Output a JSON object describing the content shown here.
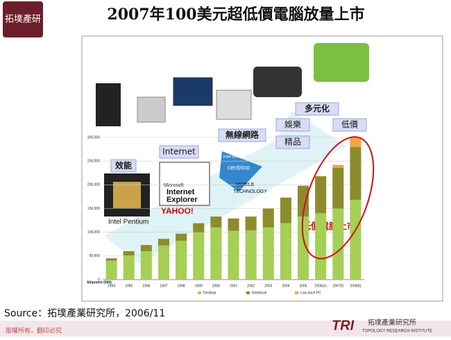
{
  "slide": {
    "title": "2007年100美元超低價電腦放量上市",
    "logo": "拓墣產研",
    "source": "Source：拓墣產業研究所，2006/11",
    "footer": "版權所有，翻印必究",
    "brand": "TRI",
    "brand_name": "拓墣產業研究所",
    "brand_sub": "TOPOLOGY RESEARCH INSTITUTE"
  },
  "chart_data": {
    "type": "stacked-bar",
    "y_label": "Shipment (000)",
    "categories": [
      "1994",
      "1995",
      "1996",
      "1997",
      "1998",
      "1999",
      "2000",
      "2001",
      "2002",
      "2003",
      "2004",
      "2005",
      "2006(e)",
      "2007(f)",
      "2008(f)"
    ],
    "series": [
      {
        "name": "Desktop",
        "color": "#a6cf55",
        "values": [
          40,
          51,
          60,
          72,
          82,
          100,
          110,
          103,
          104,
          110,
          119,
          133,
          140,
          150,
          168
        ]
      },
      {
        "name": "Notebook",
        "color": "#8c8c2c",
        "values": [
          5,
          9,
          13,
          14,
          15,
          19,
          23,
          26,
          29,
          40,
          54,
          65,
          78,
          86,
          112
        ]
      },
      {
        "name": "Low price PC",
        "color": "#f2a348",
        "values": [
          0,
          0,
          0,
          0,
          0,
          0,
          0,
          0,
          0,
          0,
          0,
          0,
          0,
          6,
          20
        ]
      }
    ],
    "ylim": [
      0,
      300
    ],
    "yticks": [
      0,
      {
        "value": 50,
        "label": "50,000"
      },
      {
        "value": 100,
        "label": "100,000"
      },
      {
        "value": 150,
        "label": "150,000"
      },
      {
        "value": 200,
        "label": "200,000"
      },
      {
        "value": 250,
        "label": "250,000"
      },
      {
        "value": 300,
        "label": "300,000"
      }
    ],
    "grid": true,
    "annotations": [
      "效能",
      "Internet",
      "無線網路",
      "多元化",
      "娛樂",
      "低價",
      "精品",
      "Intel Pentium",
      "低價電腦上市",
      "Microsoft",
      "Internet",
      "Explorer",
      "YAHOO!",
      "centrino",
      "MOBILE",
      "TECHNOLOGY",
      "intel inside"
    ]
  }
}
